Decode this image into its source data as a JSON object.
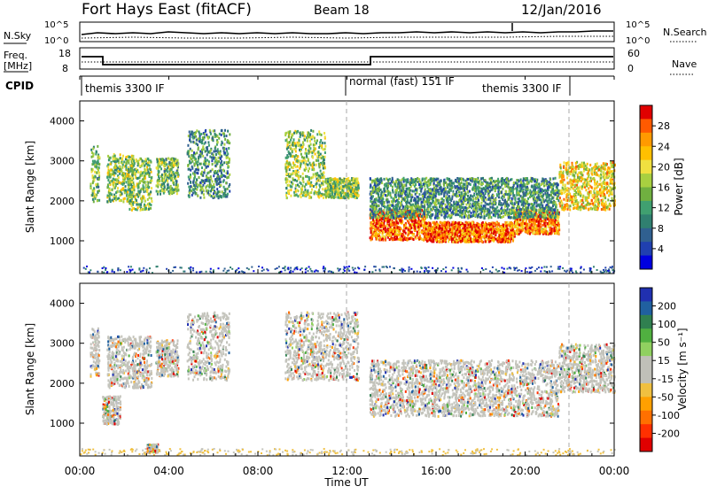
{
  "header": {
    "station": "Fort Hays East (fitACF)",
    "beam": "Beam 18",
    "date": "12/Jan/2016"
  },
  "top_panels": {
    "nsky": {
      "label": "N.Sky",
      "ticks": [
        "10^5",
        "10^0"
      ]
    },
    "nsearch": {
      "label": "N.Search",
      "ticks": [
        "10^5",
        "10^0"
      ]
    },
    "freq": {
      "label_line1": "Freq.",
      "label_line2": "[MHz]",
      "ticks": [
        "18",
        "8"
      ]
    },
    "nave": {
      "label": "Nave",
      "ticks": [
        "60",
        "0"
      ]
    },
    "cpid": {
      "label": "CPID",
      "segments": [
        {
          "name": "themis 3300 IF",
          "start": 0.0,
          "end": 12.0
        },
        {
          "name": "normal (fast) 151 IF",
          "start": 12.0,
          "end": 15.5
        },
        {
          "name": "themis 3300 IF",
          "start": 15.5,
          "end": 21.9
        }
      ]
    }
  },
  "chart_data": [
    {
      "type": "heatmap",
      "title": "",
      "ylabel": "Slant Range [km]",
      "xlabel": "",
      "x_ticks": [
        "00:00",
        "04:00",
        "08:00",
        "12:00",
        "16:00",
        "20:00",
        "00:00"
      ],
      "x_range_hours": [
        0,
        24
      ],
      "ylim": [
        180,
        4500
      ],
      "y_ticks": [
        1000,
        2000,
        3000,
        4000
      ],
      "colorbar": {
        "label": "Power [dB]",
        "ticks": [
          "28",
          "24",
          "20",
          "16",
          "12",
          "8",
          "4"
        ],
        "colors": [
          "#e00000",
          "#ff5a00",
          "#ff9a00",
          "#ffc000",
          "#f0e040",
          "#a8d040",
          "#70b040",
          "#40a070",
          "#308070",
          "#306090",
          "#2040b0",
          "#0000e0"
        ]
      },
      "bands": [
        {
          "t0": 0.45,
          "t1": 0.85,
          "r0": 2000,
          "r1": 3400,
          "level": 0.45
        },
        {
          "t0": 1.2,
          "t1": 2.4,
          "r0": 2000,
          "r1": 3200,
          "level": 0.5
        },
        {
          "t0": 2.2,
          "t1": 3.2,
          "r0": 1800,
          "r1": 3100,
          "level": 0.5
        },
        {
          "t0": 3.4,
          "t1": 4.4,
          "r0": 2200,
          "r1": 3100,
          "level": 0.45
        },
        {
          "t0": 4.8,
          "t1": 6.7,
          "r0": 2100,
          "r1": 3800,
          "level": 0.35
        },
        {
          "t0": 9.2,
          "t1": 11.0,
          "r0": 2100,
          "r1": 3800,
          "level": 0.5
        },
        {
          "t0": 11.0,
          "t1": 12.5,
          "r0": 2100,
          "r1": 2600,
          "level": 0.5
        },
        {
          "t0": 13.0,
          "t1": 15.5,
          "r0": 1050,
          "r1": 1800,
          "level": 0.85
        },
        {
          "t0": 15.5,
          "t1": 19.5,
          "r0": 1000,
          "r1": 1500,
          "level": 0.85
        },
        {
          "t0": 19.5,
          "t1": 21.5,
          "r0": 1200,
          "r1": 1800,
          "level": 0.8
        },
        {
          "t0": 21.5,
          "t1": 24.0,
          "r0": 1800,
          "r1": 3000,
          "level": 0.65
        },
        {
          "t0": 13.0,
          "t1": 21.5,
          "r0": 1600,
          "r1": 2600,
          "level": 0.35
        }
      ]
    },
    {
      "type": "heatmap",
      "title": "",
      "ylabel": "Slant Range [km]",
      "xlabel": "Time UT",
      "x_ticks": [
        "00:00",
        "04:00",
        "08:00",
        "12:00",
        "16:00",
        "20:00",
        "00:00"
      ],
      "x_range_hours": [
        0,
        24
      ],
      "ylim": [
        180,
        4500
      ],
      "y_ticks": [
        1000,
        2000,
        3000,
        4000
      ],
      "colorbar": {
        "label": "Velocity [m s⁻¹]",
        "ticks": [
          "200",
          "100",
          "50",
          "15",
          "-15",
          "-50",
          "-100",
          "-200"
        ],
        "colors": [
          "#2030b0",
          "#2060a0",
          "#308050",
          "#50b040",
          "#90d060",
          "#c0c0b8",
          "#c0c0b8",
          "#f0c040",
          "#ffa000",
          "#ff7000",
          "#ff3000",
          "#e00000"
        ]
      },
      "bands": [
        {
          "t0": 0.45,
          "t1": 0.85,
          "r0": 2200,
          "r1": 3400,
          "level": 0.5
        },
        {
          "t0": 1.2,
          "t1": 3.2,
          "r0": 1900,
          "r1": 3200,
          "level": 0.5
        },
        {
          "t0": 3.4,
          "t1": 4.4,
          "r0": 2200,
          "r1": 3100,
          "level": 0.5
        },
        {
          "t0": 4.8,
          "t1": 6.7,
          "r0": 2100,
          "r1": 3800,
          "level": 0.5
        },
        {
          "t0": 9.2,
          "t1": 12.5,
          "r0": 2100,
          "r1": 3800,
          "level": 0.5
        },
        {
          "t0": 13.0,
          "t1": 21.5,
          "r0": 1200,
          "r1": 2600,
          "level": 0.5
        },
        {
          "t0": 21.5,
          "t1": 24.0,
          "r0": 1800,
          "r1": 3000,
          "level": 0.5
        },
        {
          "t0": 1.0,
          "t1": 1.8,
          "r0": 1000,
          "r1": 1700,
          "level": 0.3
        },
        {
          "t0": 3.0,
          "t1": 3.5,
          "r0": 300,
          "r1": 500,
          "level": 0.2
        }
      ]
    }
  ]
}
